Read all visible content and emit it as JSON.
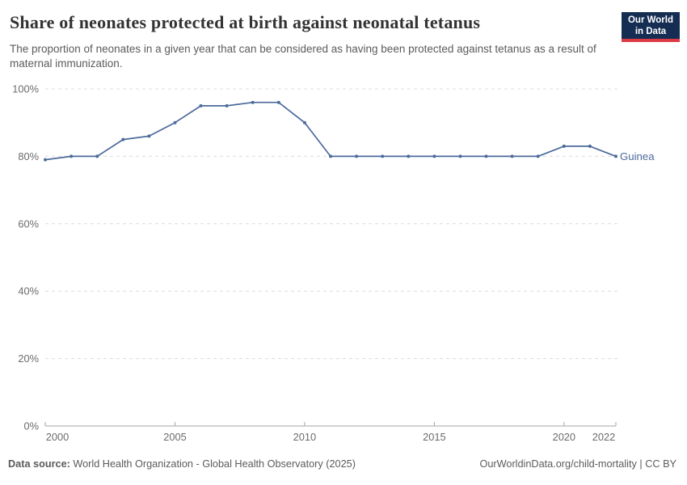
{
  "header": {
    "title": "Share of neonates protected at birth against neonatal tetanus",
    "subtitle": "The proportion of neonates in a given year that can be considered as having been protected against tetanus as a result of maternal immunization.",
    "logo": {
      "line1": "Our World",
      "line2": "in Data",
      "bg_color": "#152d53",
      "stripe_color": "#dc3b44"
    }
  },
  "chart_data": {
    "type": "line",
    "title": "Share of neonates protected at birth against neonatal tetanus",
    "x": [
      2000,
      2001,
      2002,
      2003,
      2004,
      2005,
      2006,
      2007,
      2008,
      2009,
      2010,
      2011,
      2012,
      2013,
      2014,
      2015,
      2016,
      2017,
      2018,
      2019,
      2020,
      2021,
      2022
    ],
    "series": [
      {
        "name": "Guinea",
        "color": "#4c6a9c",
        "values": [
          79,
          80,
          80,
          85,
          86,
          90,
          95,
          95,
          96,
          96,
          90,
          80,
          80,
          80,
          80,
          80,
          80,
          80,
          80,
          80,
          83,
          83,
          80
        ]
      }
    ],
    "xlabel": "",
    "ylabel": "",
    "xlim": [
      2000,
      2022
    ],
    "ylim": [
      0,
      100
    ],
    "x_ticks": [
      2000,
      2005,
      2010,
      2015,
      2020,
      2022
    ],
    "x_tick_labels": [
      "2000",
      "2005",
      "2010",
      "2015",
      "2020",
      "2022"
    ],
    "y_ticks": [
      0,
      20,
      40,
      60,
      80,
      100
    ],
    "y_tick_labels": [
      "0%",
      "20%",
      "40%",
      "60%",
      "80%",
      "100%"
    ],
    "grid": "horizontal-dashed",
    "legend_position": "end-of-line-label",
    "colors": {
      "gridline": "#dcdcdc",
      "axis_line": "#a5a5a5",
      "tick_label": "#6b6b6b"
    }
  },
  "footer": {
    "datasource_label": "Data source:",
    "datasource_text": " World Health Organization - Global Health Observatory (2025)",
    "right_text": "OurWorldinData.org/child-mortality | CC BY"
  }
}
